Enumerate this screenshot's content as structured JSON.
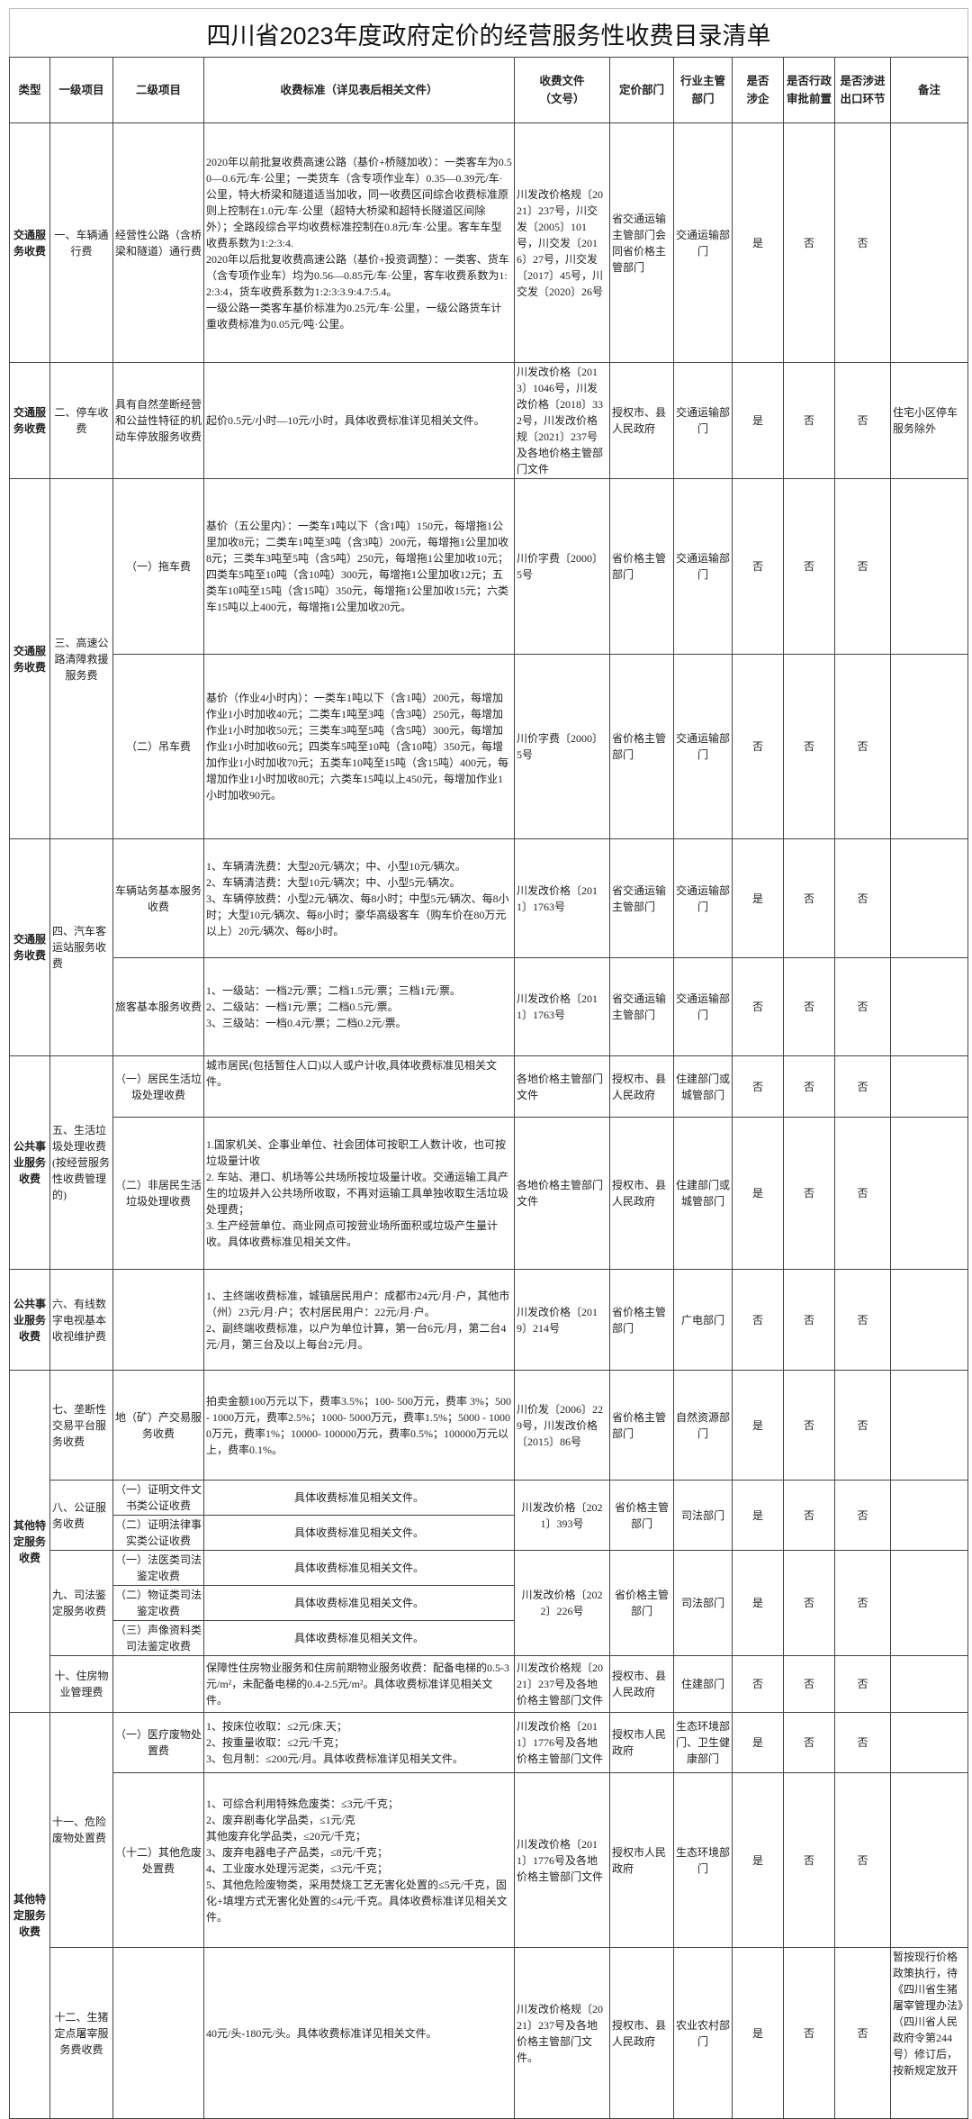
{
  "title": "四川省2023年度政府定价的经营服务性收费目录清单",
  "headers": {
    "type": "类型",
    "level1": "一级项目",
    "level2": "二级项目",
    "standard": "收费标准（详见表后相关文件）",
    "document": "收费文件\n（文号）",
    "pricing_dept": "定价部门",
    "industry_dept": "行业主管\n部门",
    "involves_enterprise": "是否\n涉企",
    "admin_approval": "是否行政\n审批前置",
    "import_export": "是否涉进\n出口环节",
    "remark": "备注"
  },
  "rows": [
    {
      "type": "交通服务收费",
      "level1": "一、车辆通行费",
      "level2": "经营性公路（含桥梁和隧道）通行费",
      "standard": "2020年以前批复收费高速公路（基价+桥隧加收）：一类客车为0.50—0.6元/车·公里；一类货车（含专项作业车）0.35—0.39元/车·公里，特大桥梁和隧道适当加收，同一收费区间综合收费标准原则上控制在1.0元/车·公里（超特大桥梁和超特长隧道区间除外）；全路段综合平均收费标准控制在0.8元/车·公里。客车车型收费系数为1:2:3:4.\n2020年以后批复收费高速公路（基价+投资调整）：一类客、货车（含专项作业车）均为0.56—0.85元/车·公里，客车收费系数为1:2:3:4，货车收费系数为1:2:3:3.9:4.7:5.4。\n一级公路一类客车基价标准为0.25元/车·公里，一级公路货车计重收费标准为0.05元/吨·公里。",
      "document": "川发改价格规〔2021〕237号，川交发〔2005〕101号，川交发〔2016〕27号，川交发〔2017〕45号，川交发〔2020〕26号",
      "pricing_dept": "省交通运输主管部门会同省价格主管部门",
      "industry_dept": "交通运输部门",
      "involves_enterprise": "是",
      "admin_approval": "否",
      "import_export": "否",
      "remark": ""
    },
    {
      "type": "交通服务收费",
      "level1": "二、停车收费",
      "level2": "具有自然垄断经营和公益性特征的机动车停放服务收费",
      "standard": "起价0.5元/小时—10元/小时，具体收费标准详见相关文件。",
      "document": "川发改价格〔2013〕1046号，川发改价格〔2018〕332号，川发改价格规〔2021〕237号及各地价格主管部门文件",
      "pricing_dept": "授权市、县人民政府",
      "industry_dept": "交通运输部门",
      "involves_enterprise": "是",
      "admin_approval": "否",
      "import_export": "否",
      "remark": "住宅小区停车服务除外"
    },
    {
      "type": "交通服务收费",
      "level1": "三、高速公路清障救援服务费",
      "level2": "（一）拖车费",
      "standard": "基价（五公里内）：一类车1吨以下（含1吨）150元，每增拖1公里加收8元；二类车1吨至3吨（含3吨）200元，每增拖1公里加收8元；三类车3吨至5吨（含5吨）250元，每增拖1公里加收10元；四类车5吨至10吨（含10吨）300元，每增拖1公里加收12元；五类车10吨至15吨（含15吨）350元，每增拖1公里加收15元；六类车15吨以上400元，每增拖1公里加收20元。",
      "document": "川价字费〔2000〕5号",
      "pricing_dept": "省价格主管部门",
      "industry_dept": "交通运输部门",
      "involves_enterprise": "否",
      "admin_approval": "否",
      "import_export": "否",
      "remark": ""
    },
    {
      "level2": "（二）吊车费",
      "standard": "基价（作业4小时内）：一类车1吨以下（含1吨）200元，每增加作业1小时加收40元；二类车1吨至3吨（含3吨）250元，每增加作业1小时加收50元；三类车3吨至5吨（含5吨）300元，每增加作业1小时加收60元；四类车5吨至10吨（含10吨）350元，每增加作业1小时加收70元；五类车10吨至15吨（含15吨）400元，每增加作业1小时加收80元；六类车15吨以上450元，每增加作业1小时加收90元。",
      "document": "川价字费〔2000〕5号",
      "pricing_dept": "省价格主管部门",
      "industry_dept": "交通运输部门",
      "involves_enterprise": "否",
      "admin_approval": "否",
      "import_export": "否",
      "remark": ""
    },
    {
      "type": "交通服务收费",
      "level1": "四、汽车客运站服务收费",
      "level2": "车辆站务基本服务收费",
      "standard": "1、车辆清洗费：大型20元/辆次；中、小型10元/辆次。\n2、车辆清洁费：大型10元/辆次；中、小型5元/辆次。\n3、车辆停放费：小型2元/辆次、每8小时；中型5元/辆次、每8小时；大型10元/辆次、每8小时；豪华高级客车（购车价在80万元以上）20元/辆次、每8小时。",
      "document": "川发改价格〔2011〕1763号",
      "pricing_dept": "省交通运输主管部门",
      "industry_dept": "交通运输部门",
      "involves_enterprise": "是",
      "admin_approval": "否",
      "import_export": "否",
      "remark": ""
    },
    {
      "level2": "旅客基本服务收费",
      "standard": "1、一级站：一档2元/票；二档1.5元/票；三档1元/票。\n2、二级站：一档1元/票；二档0.5元/票。\n3、三级站：一档0.4元/票；二档0.2元/票。",
      "document": "川发改价格〔2011〕1763号",
      "pricing_dept": "省交通运输主管部门",
      "industry_dept": "交通运输部门",
      "involves_enterprise": "否",
      "admin_approval": "否",
      "import_export": "否",
      "remark": ""
    },
    {
      "type": "公共事业服务收费",
      "level1": "五、生活垃圾处理收费(按经营服务性收费管理的)",
      "level2": "（一）居民生活垃圾处理收费",
      "standard": "城市居民(包括暂住人口)以人或户计收,具体收费标准见相关文件。",
      "document": "各地价格主管部门文件",
      "pricing_dept": "授权市、县人民政府",
      "industry_dept": "住建部门或城管部门",
      "involves_enterprise": "否",
      "admin_approval": "否",
      "import_export": "否",
      "remark": ""
    },
    {
      "level2": "（二）非居民生活垃圾处理收费",
      "standard": "1.国家机关、企事业单位、社会团体可按职工人数计收，也可按垃圾量计收\n2. 车站、港口、机场等公共场所按垃圾量计收。交通运输工具产生的垃圾并入公共场所收取，不再对运输工具单独收取生活垃圾处理费；\n3. 生产经营单位、商业网点可按营业场所面积或垃圾产生量计收。具体收费标准见相关文件。",
      "document": "各地价格主管部门文件",
      "pricing_dept": "授权市、县人民政府",
      "industry_dept": "住建部门或城管部门",
      "involves_enterprise": "是",
      "admin_approval": "否",
      "import_export": "否",
      "remark": ""
    },
    {
      "type": "公共事业服务收费",
      "level1": "六、有线数字电视基本收视维护费",
      "level2": "",
      "standard": "1、主终端收费标准，城镇居民用户：成都市24元/月·户，其他市（州）23元/月·户；农村居民用户：22元/月·户。\n2、副终端收费标准，以户为单位计算，第一台6元/月，第二台4元/月，第三台及以上每台2元/月。",
      "document": "川发改价格〔2019〕214号",
      "pricing_dept": "省价格主管部门",
      "industry_dept": "广电部门",
      "involves_enterprise": "否",
      "admin_approval": "否",
      "import_export": "否",
      "remark": ""
    },
    {
      "type": "其他特定服务收费",
      "level1": "七、垄断性交易平台服务收费",
      "level2": "地（矿）产交易服务收费",
      "standard": "拍卖金额100万元以下，费率3.5%；100- 500万元，费率 3%；500- 1000万元，费率2.5%；1000- 5000万元，费率1.5%；5000 - 10000万元，费率1%；10000- 100000万元，费率0.5%；100000万元以上，费率0.1%。",
      "document": "川价发〔2006〕229号，川发改价格〔2015〕86号",
      "pricing_dept": "省价格主管部门",
      "industry_dept": "自然资源部门",
      "involves_enterprise": "是",
      "admin_approval": "否",
      "import_export": "否",
      "remark": ""
    },
    {
      "level1": "八、公证服务收费",
      "level2": "（一）证明文件文书类公证收费",
      "standard": "具体收费标准见相关文件。",
      "document": "川发改价格〔2021〕393号",
      "pricing_dept": "省价格主管部门",
      "industry_dept": "司法部门",
      "involves_enterprise": "是",
      "admin_approval": "否",
      "import_export": "否",
      "remark": ""
    },
    {
      "level2": "（二）证明法律事实类公证收费",
      "standard": "具体收费标准见相关文件。"
    },
    {
      "level1": "九、司法鉴定服务收费",
      "level2": "（一）法医类司法鉴定收费",
      "standard": "具体收费标准见相关文件。",
      "document": "川发改价格〔2022〕226号",
      "pricing_dept": "省价格主管部门",
      "industry_dept": "司法部门",
      "involves_enterprise": "是",
      "admin_approval": "否",
      "import_export": "否",
      "remark": ""
    },
    {
      "level2": "（二）物证类司法鉴定收费",
      "standard": "具体收费标准见相关文件。"
    },
    {
      "level2": "（三）声像资料类司法鉴定收费",
      "standard": "具体收费标准见相关文件。"
    },
    {
      "level1": "十、住房物业管理费",
      "level2": "",
      "standard": "保障性住房物业服务和住房前期物业服务收费：配备电梯的0.5-3元/m²，未配备电梯的0.4-2.5元/m²。具体收费标准详见相关文件。",
      "document": "川发改价格规〔2021〕237号及各地价格主管部门文件",
      "pricing_dept": "授权市、县人民政府",
      "industry_dept": "住建部门",
      "involves_enterprise": "否",
      "admin_approval": "否",
      "import_export": "否",
      "remark": ""
    },
    {
      "type": "其他特定服务收费",
      "level1": "十一、危险废物处置费",
      "level2": "（一）医疗废物处置费",
      "standard": "1、按床位收取：≤2元/床.天；\n2、按重量收取：≤2元/千克；\n3、包月制：≤200元/月。具体收费标准详见相关文件。",
      "document": "川发改价格〔2011〕1776号及各地价格主管部门文件",
      "pricing_dept": "授权市人民政府",
      "industry_dept": "生态环境部门、卫生健康部门",
      "involves_enterprise": "是",
      "admin_approval": "否",
      "import_export": "否",
      "remark": ""
    },
    {
      "level2": "（十二）其他危废处置费",
      "standard": "1、可综合利用特殊危废类：≤3元/千克；\n2、废弃剧毒化学品类，≤1元/克\n  其他废弃化学品类，≤20元/千克；\n3、废弃电器电子产品类，≤8元/千克；\n4、工业废水处理污泥类，≤3元/千克；\n5、其他危险废物类，采用焚烧工艺无害化处置的≤5元/千克，固化+填埋方式无害化处置的≤4元/千克。具体收费标准详见相关文件。",
      "document": "川发改价格〔2011〕1776号及各地价格主管部门文件",
      "pricing_dept": "授权市人民政府",
      "industry_dept": "生态环境部门",
      "involves_enterprise": "是",
      "admin_approval": "否",
      "import_export": "否",
      "remark": ""
    },
    {
      "level1": "十二、生猪定点屠宰服务费收费",
      "level2": "",
      "standard": "40元/头-180元/头。具体收费标准详见相关文件。",
      "document": "川发改价格规〔2021〕237号及各地价格主管部门文件。",
      "pricing_dept": "授权市、县人民政府",
      "industry_dept": "农业农村部门",
      "involves_enterprise": "是",
      "admin_approval": "否",
      "import_export": "否",
      "remark": "暂按现行价格政策执行，待《四川省生猪屠宰管理办法》（四川省人民政府令第244号）修订后，按新规定放开"
    }
  ]
}
